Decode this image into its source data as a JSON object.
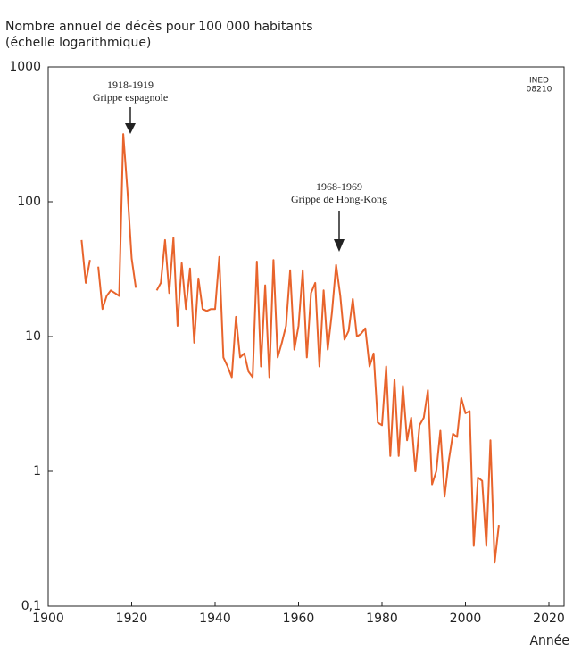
{
  "chart_data": {
    "type": "line",
    "title": "Nombre annuel de décès pour 100 000 habitants",
    "subtitle": "(échelle logarithmique)",
    "x_label": "Année",
    "source": [
      "INED",
      "08210"
    ],
    "annotations": [
      {
        "lines": [
          "1918-1919",
          "Grippe espagnole"
        ]
      },
      {
        "lines": [
          "1968-1969",
          "Grippe de Hong-Kong"
        ]
      }
    ],
    "log_y": true,
    "x": [
      1908,
      1909,
      1910,
      1911,
      1912,
      1913,
      1914,
      1915,
      1916,
      1917,
      1918,
      1919,
      1920,
      1921,
      1922,
      1923,
      1924,
      1925,
      1926,
      1927,
      1928,
      1929,
      1930,
      1931,
      1932,
      1933,
      1934,
      1935,
      1936,
      1937,
      1938,
      1939,
      1940,
      1941,
      1942,
      1943,
      1944,
      1945,
      1946,
      1947,
      1948,
      1949,
      1950,
      1951,
      1952,
      1953,
      1954,
      1955,
      1956,
      1957,
      1958,
      1959,
      1960,
      1961,
      1962,
      1963,
      1964,
      1965,
      1966,
      1967,
      1968,
      1969,
      1970,
      1971,
      1972,
      1973,
      1974,
      1975,
      1976,
      1977,
      1978,
      1979,
      1980,
      1981,
      1982,
      1983,
      1984,
      1985,
      1986,
      1987,
      1988,
      1989,
      1990,
      1991,
      1992,
      1993,
      1994,
      1995,
      1996,
      1997,
      1998,
      1999,
      2000,
      2001,
      2002,
      2003,
      2004,
      2005,
      2006,
      2007,
      2008
    ],
    "series": [
      {
        "name": "Décès",
        "color": "#e8642c",
        "values": [
          52,
          25,
          37,
          null,
          33,
          16,
          20,
          22,
          21,
          20,
          318,
          120,
          38,
          23,
          null,
          null,
          null,
          null,
          22,
          25,
          52,
          21,
          54,
          12,
          35,
          16,
          32,
          9,
          27,
          16,
          15.5,
          16,
          16,
          39,
          7,
          6,
          5,
          14,
          7,
          7.5,
          5.5,
          5,
          36,
          6,
          24,
          5,
          37,
          7,
          9,
          12,
          31,
          8,
          12,
          31,
          7,
          21,
          25,
          6,
          22,
          8,
          15,
          34,
          20,
          9.5,
          11,
          19,
          10,
          10.5,
          11.5,
          6,
          7.5,
          2.3,
          2.2,
          6,
          1.3,
          4.8,
          1.3,
          4.3,
          1.7,
          2.5,
          1,
          2.2,
          2.5,
          4,
          0.8,
          1,
          2,
          0.65,
          1.2,
          1.9,
          1.8,
          3.5,
          2.7,
          2.8,
          0.28,
          0.9,
          0.85,
          0.28,
          1.7,
          0.21,
          0.4
        ]
      }
    ],
    "xlim": [
      1900,
      2024
    ],
    "xticks": [
      1900,
      1920,
      1940,
      1960,
      1980,
      2000,
      2020
    ],
    "ylim": [
      0.1,
      1000
    ],
    "yticks": [
      {
        "value": 0.1,
        "label": "0,1"
      },
      1,
      10,
      100,
      1000
    ]
  }
}
